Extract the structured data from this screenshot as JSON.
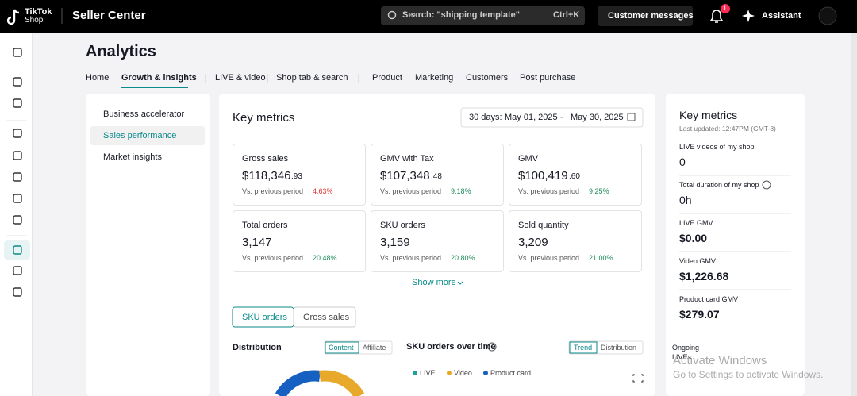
{
  "header": {
    "brand": "TikTok",
    "brand_sub": "Shop",
    "app": "Seller Center",
    "search": "Search: \"shipping template\"",
    "shortcut": "Ctrl+K",
    "messages": "Customer messages",
    "badge": "1",
    "assistant": "Assistant"
  },
  "page": {
    "title": "Analytics",
    "tabs": [
      "Home",
      "Growth & insights",
      "LIVE & video",
      "Shop tab & search",
      "Product",
      "Marketing",
      "Customers",
      "Post purchase"
    ]
  },
  "side_menu": [
    "Business accelerator",
    "Sales performance",
    "Market insights"
  ],
  "key_metrics": {
    "title": "Key metrics",
    "date_label": "30 days:",
    "date_from": "May 01, 2025",
    "date_sep": "-",
    "date_to": "May 30, 2025",
    "compare_label": "Vs. previous period",
    "cards": [
      {
        "name": "Gross sales",
        "value": "$118,346",
        "decimals": ".93",
        "change": "4.63%",
        "trend": "down"
      },
      {
        "name": "GMV with Tax",
        "value": "$107,348",
        "decimals": ".48",
        "change": "9.18%",
        "trend": "up"
      },
      {
        "name": "GMV",
        "value": "$100,419",
        "decimals": ".60",
        "change": "9.25%",
        "trend": "up"
      },
      {
        "name": "Total orders",
        "value": "3,147",
        "decimals": "",
        "change": "20.48%",
        "trend": "up"
      },
      {
        "name": "SKU orders",
        "value": "3,159",
        "decimals": "",
        "change": "20.80%",
        "trend": "up"
      },
      {
        "name": "Sold quantity",
        "value": "3,209",
        "decimals": "",
        "change": "21.00%",
        "trend": "up"
      }
    ],
    "show_more": "Show more"
  },
  "breakdown": {
    "buttons": [
      "SKU orders",
      "Gross sales"
    ],
    "distribution": "Distribution",
    "dist_toggle": [
      "Content",
      "Affiliate"
    ],
    "over_time": "SKU orders over time",
    "time_toggle": [
      "Trend",
      "Distribution"
    ],
    "legend": [
      "LIVE",
      "Video",
      "Product card"
    ]
  },
  "right_panel": {
    "title": "Key metrics",
    "updated": "Last updated: 12:47PM (GMT-8)",
    "items": [
      {
        "label": "LIVE videos of my shop",
        "value": "0"
      },
      {
        "label": "Total duration of my shop",
        "value": "0h"
      },
      {
        "label": "LIVE GMV",
        "value": "$0.00"
      },
      {
        "label": "Video GMV",
        "value": "$1,226.68"
      },
      {
        "label": "Product card GMV",
        "value": "$279.07"
      }
    ],
    "ongoing": "Ongoing LIVEs"
  },
  "watermark": {
    "title": "Activate Windows",
    "text": "Go to Settings to activate Windows."
  }
}
